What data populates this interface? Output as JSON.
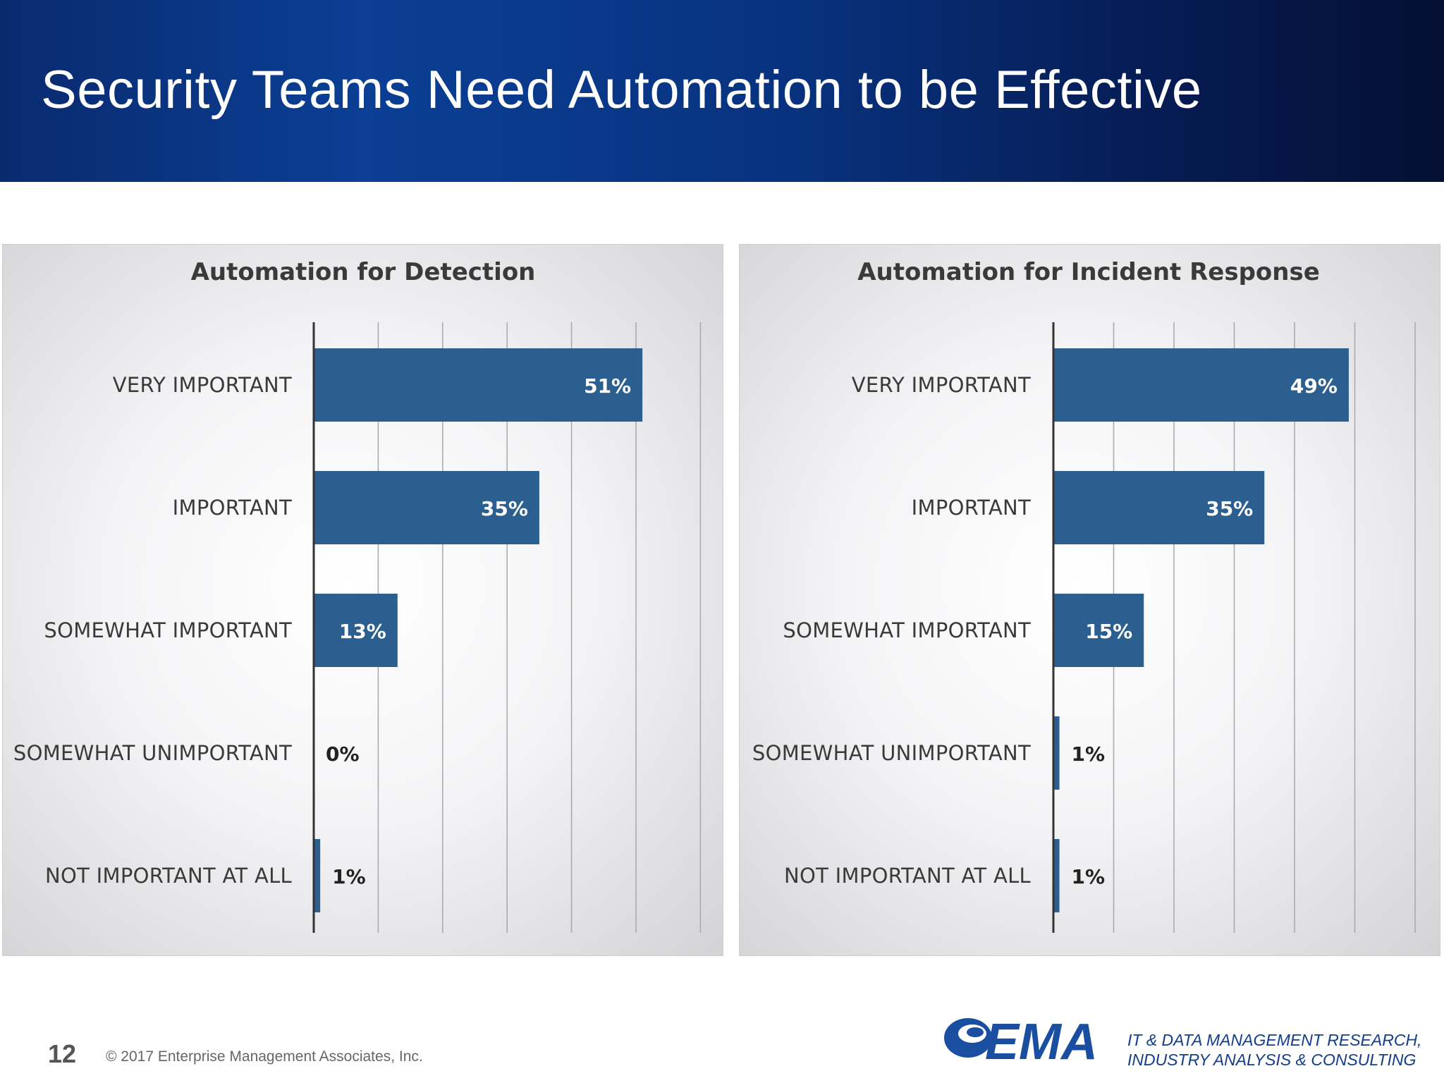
{
  "slide": {
    "title": "Security Teams Need Automation to be Effective",
    "page_number": "12",
    "copyright": "© 2017 Enterprise Management Associates, Inc.",
    "logo_text": "EMA",
    "tagline_line1": "IT & DATA MANAGEMENT RESEARCH,",
    "tagline_line2": "INDUSTRY ANALYSIS & CONSULTING"
  },
  "colors": {
    "bar": "#2a5f8f",
    "header_start": "#0a3f95",
    "header_end": "#040f33",
    "logo": "#1a4ea0"
  },
  "chart_data": [
    {
      "type": "bar",
      "orientation": "horizontal",
      "title": "Automation for Detection",
      "categories": [
        "VERY IMPORTANT",
        "IMPORTANT",
        "SOMEWHAT IMPORTANT",
        "SOMEWHAT UNIMPORTANT",
        "NOT IMPORTANT AT ALL"
      ],
      "values": [
        51,
        35,
        13,
        0,
        1
      ],
      "value_labels": [
        "51%",
        "35%",
        "13%",
        "0%",
        "1%"
      ],
      "xlim": [
        0,
        60
      ],
      "grid": true,
      "legend": "none"
    },
    {
      "type": "bar",
      "orientation": "horizontal",
      "title": "Automation for Incident Response",
      "categories": [
        "VERY IMPORTANT",
        "IMPORTANT",
        "SOMEWHAT IMPORTANT",
        "SOMEWHAT UNIMPORTANT",
        "NOT IMPORTANT AT ALL"
      ],
      "values": [
        49,
        35,
        15,
        1,
        1
      ],
      "value_labels": [
        "49%",
        "35%",
        "15%",
        "1%",
        "1%"
      ],
      "xlim": [
        0,
        60
      ],
      "grid": true,
      "legend": "none"
    }
  ]
}
